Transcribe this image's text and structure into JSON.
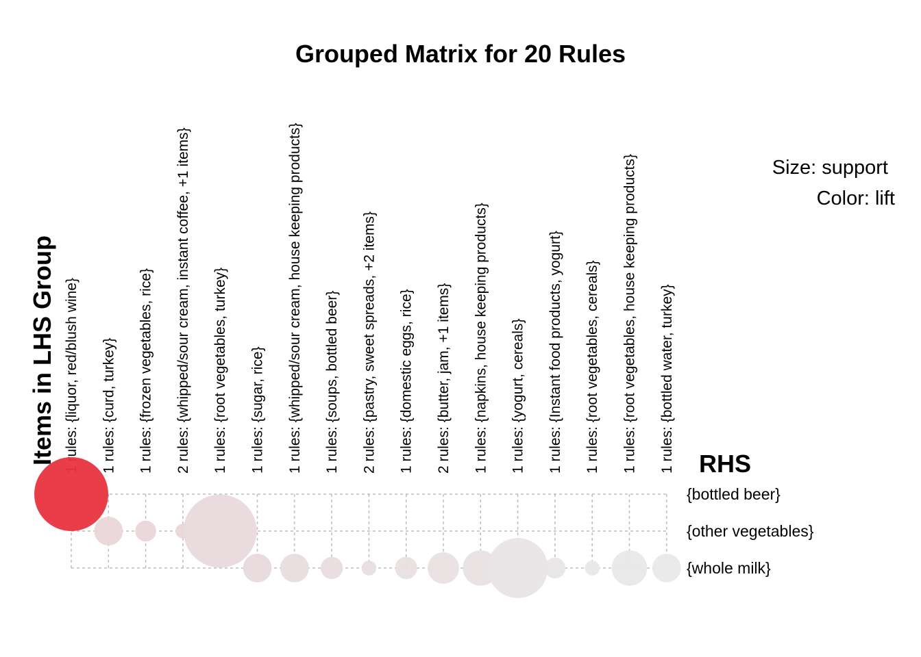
{
  "chart_data": {
    "type": "scatter",
    "title": "Grouped Matrix for 20 Rules",
    "legend": [
      "Size: support",
      "Color: lift"
    ],
    "xlabel": "Items in LHS Group",
    "ylabel": "RHS",
    "lhs_groups": [
      "1 rules: {liquor, red/blush wine}",
      "1 rules: {curd, turkey}",
      "1 rules: {frozen vegetables, rice}",
      "2 rules: {whipped/sour cream, instant coffee, +1 items}",
      "1 rules: {root vegetables, turkey}",
      "1 rules: {sugar, rice}",
      "1 rules: {whipped/sour cream, house keeping products}",
      "1 rules: {soups, bottled beer}",
      "2 rules: {pastry, sweet spreads, +2 items}",
      "1 rules: {domestic eggs, rice}",
      "2 rules: {butter, jam, +1 items}",
      "1 rules: {napkins, house keeping products}",
      "1 rules: {yogurt, cereals}",
      "1 rules: {Instant food products, yogurt}",
      "1 rules: {root vegetables, cereals}",
      "1 rules: {root vegetables, house keeping products}",
      "1 rules: {bottled water, turkey}"
    ],
    "rhs_items": [
      "{bottled beer}",
      "{other vegetables}",
      "{whole milk}"
    ],
    "points": [
      {
        "lhs": 0,
        "rhs": 0,
        "support": 1.0,
        "color": "#e8333f"
      },
      {
        "lhs": 1,
        "rhs": 1,
        "support": 0.15,
        "color": "#ead6d8"
      },
      {
        "lhs": 2,
        "rhs": 1,
        "support": 0.08,
        "color": "#ead6d8"
      },
      {
        "lhs": 3,
        "rhs": 1,
        "support": 0.04,
        "color": "#ead6d8"
      },
      {
        "lhs": 4,
        "rhs": 1,
        "support": 0.98,
        "color": "#e9dadc"
      },
      {
        "lhs": 5,
        "rhs": 2,
        "support": 0.15,
        "color": "#e9dadc"
      },
      {
        "lhs": 6,
        "rhs": 2,
        "support": 0.15,
        "color": "#e9dcdd"
      },
      {
        "lhs": 7,
        "rhs": 2,
        "support": 0.09,
        "color": "#e9dcde"
      },
      {
        "lhs": 8,
        "rhs": 2,
        "support": 0.04,
        "color": "#e9dddf"
      },
      {
        "lhs": 9,
        "rhs": 2,
        "support": 0.09,
        "color": "#e9dfe0"
      },
      {
        "lhs": 10,
        "rhs": 2,
        "support": 0.18,
        "color": "#e9e0e1"
      },
      {
        "lhs": 11,
        "rhs": 2,
        "support": 0.23,
        "color": "#e9e2e3"
      },
      {
        "lhs": 12,
        "rhs": 2,
        "support": 0.66,
        "color": "#e9e4e5"
      },
      {
        "lhs": 13,
        "rhs": 2,
        "support": 0.08,
        "color": "#e9e6e7"
      },
      {
        "lhs": 14,
        "rhs": 2,
        "support": 0.04,
        "color": "#e9e7e7"
      },
      {
        "lhs": 15,
        "rhs": 2,
        "support": 0.23,
        "color": "#e9e8e8"
      },
      {
        "lhs": 16,
        "rhs": 2,
        "support": 0.15,
        "color": "#e9e9e9"
      }
    ]
  }
}
